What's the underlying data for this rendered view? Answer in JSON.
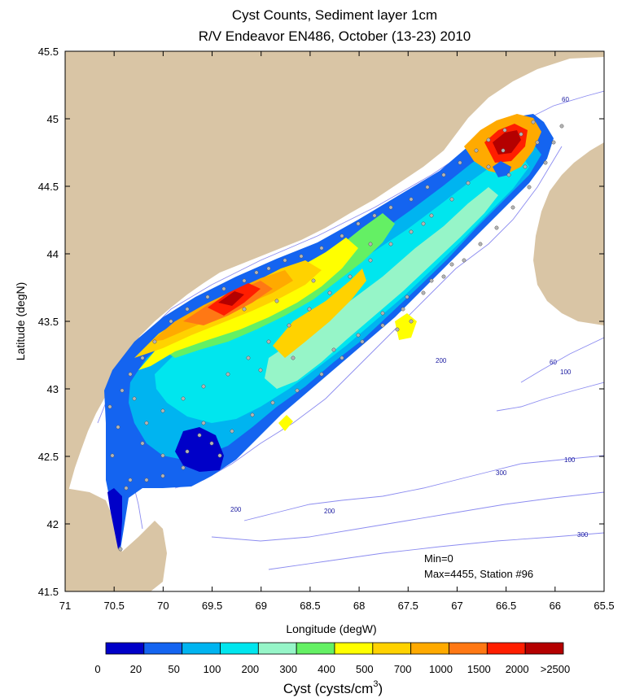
{
  "title_line1": "Cyst Counts, Sediment layer 1cm",
  "title_line2": "R/V Endeavor EN486, October (13-23) 2010",
  "x_axis": {
    "label": "Longitude (degW)",
    "ticks": [
      "71",
      "70.5",
      "70",
      "69.5",
      "69",
      "68.5",
      "68",
      "67.5",
      "67",
      "66.5",
      "66",
      "65.5"
    ]
  },
  "y_axis": {
    "label": "Latitude (degN)",
    "ticks": [
      "45.5",
      "45",
      "44.5",
      "44",
      "43.5",
      "43",
      "42.5",
      "42",
      "41.5"
    ]
  },
  "isobath_labels": [
    "60",
    "200",
    "60",
    "100",
    "100",
    "300",
    "200",
    "200",
    "300"
  ],
  "stats": {
    "min_text": "Min=0",
    "max_text": "Max=4455, Station #96"
  },
  "colorbar": {
    "ticks": [
      "0",
      "20",
      "50",
      "100",
      "200",
      "300",
      "400",
      "500",
      "700",
      "1000",
      "1500",
      "2000",
      ">2500"
    ],
    "colors": [
      "#0000c8",
      "#1464f0",
      "#00b4f0",
      "#00e6ee",
      "#96f5c8",
      "#64f064",
      "#ffff00",
      "#ffd200",
      "#ffaa00",
      "#ff7814",
      "#ff1e00",
      "#b40000"
    ],
    "label": "Cyst (cysts/cm",
    "label_sup": "3",
    "label_end": ")"
  },
  "colors": {
    "land": "#d9c5a5",
    "isobath": "#8c8cf0",
    "station": "#b4b4b4"
  }
}
